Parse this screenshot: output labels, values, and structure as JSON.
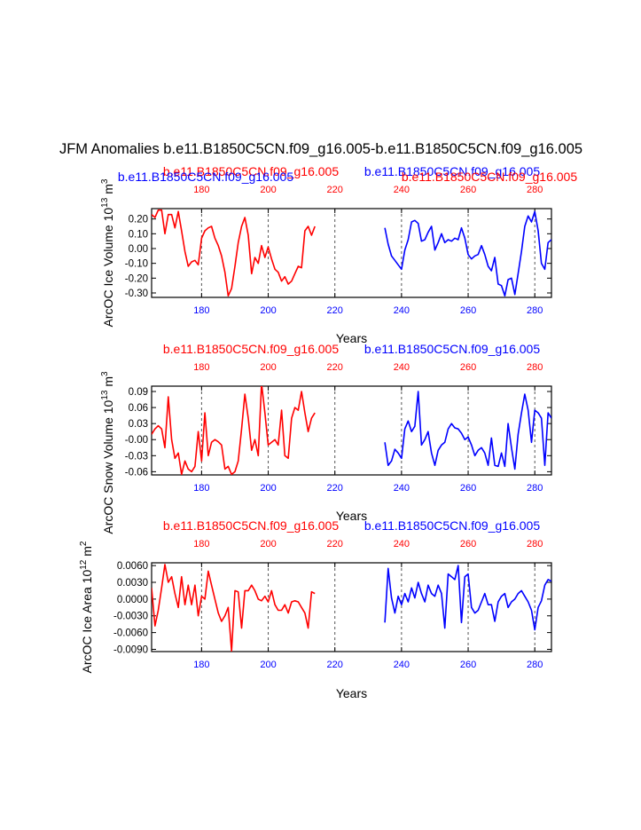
{
  "title": "JFM Anomalies b.e11.B1850C5CN.f09_g16.005-b.e11.B1850C5CN.f09_g16.005",
  "colors": {
    "red": "#ff0000",
    "blue": "#0000ff",
    "axis": "#000000",
    "grid": "#555555"
  },
  "chart_data": [
    {
      "type": "line",
      "ylabel": "ArcOC Ice Volume 10^13 m^3",
      "ylabel_main": "ArcOC Ice Volume 10",
      "ylabel_sup1": "13",
      "ylabel_mid": " m",
      "ylabel_sup2": "3",
      "xlabel": "Years",
      "xlim": [
        165,
        285
      ],
      "ylim": [
        -0.33,
        0.27
      ],
      "yticks": [
        0.2,
        0.1,
        0.0,
        -0.1,
        -0.2,
        -0.3
      ],
      "ytick_labels": [
        "0.20",
        "0.10",
        "0.00",
        "-0.10",
        "-0.20",
        "-0.30"
      ],
      "xticks": [
        180,
        200,
        220,
        240,
        260,
        280
      ],
      "xtick_labels": [
        "180",
        "200",
        "220",
        "240",
        "260",
        "280"
      ],
      "vgrid": [
        180,
        200,
        220,
        240,
        260,
        280
      ],
      "top_label_left": "b.e11.B1850C5CN.f09_g16.005",
      "top_label_right": "b.e11.B1850C5CN.f09_g16.005",
      "top_tick_labels_left": [
        "180",
        "200",
        "220"
      ],
      "top_tick_labels_right": [
        "240",
        "260",
        "280"
      ],
      "series": [
        {
          "name": "b.e11.B1850C5CN.f09_g16.005",
          "color": "red",
          "x": [
            165,
            166,
            167,
            168,
            169,
            170,
            171,
            172,
            173,
            174,
            175,
            176,
            177,
            178,
            179,
            180,
            181,
            182,
            183,
            184,
            185,
            186,
            187,
            188,
            189,
            190,
            191,
            192,
            193,
            194,
            195,
            196,
            197,
            198,
            199,
            200,
            201,
            202,
            203,
            204,
            205,
            206,
            207,
            208,
            209,
            210,
            211,
            212,
            213,
            214
          ],
          "values": [
            0.23,
            0.21,
            0.26,
            0.26,
            0.1,
            0.23,
            0.23,
            0.14,
            0.25,
            0.12,
            -0.02,
            -0.12,
            -0.09,
            -0.08,
            -0.11,
            0.07,
            0.12,
            0.14,
            0.15,
            0.07,
            0.02,
            -0.05,
            -0.16,
            -0.32,
            -0.27,
            -0.12,
            0.04,
            0.15,
            0.21,
            0.09,
            -0.17,
            -0.06,
            -0.1,
            0.02,
            -0.06,
            0.01,
            -0.07,
            -0.14,
            -0.16,
            -0.22,
            -0.19,
            -0.24,
            -0.22,
            -0.17,
            -0.12,
            -0.13,
            0.12,
            0.15,
            0.09,
            0.15
          ]
        },
        {
          "name": "b.e11.B1850C5CN.f09_g16.005",
          "color": "blue",
          "x": [
            235,
            236,
            237,
            238,
            239,
            240,
            241,
            242,
            243,
            244,
            245,
            246,
            247,
            248,
            249,
            250,
            251,
            252,
            253,
            254,
            255,
            256,
            257,
            258,
            259,
            260,
            261,
            262,
            263,
            264,
            265,
            266,
            267,
            268,
            269,
            270,
            271,
            272,
            273,
            274,
            275,
            276,
            277,
            278,
            279,
            280,
            281,
            282,
            283,
            284,
            285
          ],
          "values": [
            0.14,
            0.03,
            -0.05,
            -0.08,
            -0.11,
            -0.14,
            -0.01,
            0.06,
            0.18,
            0.19,
            0.17,
            0.05,
            0.06,
            0.11,
            0.15,
            -0.01,
            0.04,
            0.1,
            0.04,
            0.06,
            0.05,
            0.07,
            0.06,
            0.14,
            0.07,
            -0.04,
            -0.07,
            -0.05,
            -0.04,
            0.02,
            -0.04,
            -0.12,
            -0.15,
            -0.06,
            -0.24,
            -0.25,
            -0.32,
            -0.21,
            -0.2,
            -0.31,
            -0.17,
            -0.02,
            0.15,
            0.22,
            0.18,
            0.25,
            0.12,
            -0.1,
            -0.14,
            0.04,
            0.06
          ]
        }
      ]
    },
    {
      "type": "line",
      "ylabel": "ArcOC Snow Volume 10^13 m^3",
      "ylabel_main": "ArcOC Snow Volume 10",
      "ylabel_sup1": "13",
      "ylabel_mid": " m",
      "ylabel_sup2": "3",
      "xlabel": "Years",
      "xlim": [
        165,
        285
      ],
      "ylim": [
        -0.066,
        0.1
      ],
      "yticks": [
        0.09,
        0.06,
        0.03,
        0.0,
        -0.03,
        -0.06
      ],
      "ytick_labels": [
        "0.09",
        "0.06",
        "0.03",
        "-0.00",
        "-0.03",
        "-0.06"
      ],
      "xticks": [
        180,
        200,
        220,
        240,
        260,
        280
      ],
      "xtick_labels": [
        "180",
        "200",
        "220",
        "240",
        "260",
        "280"
      ],
      "vgrid": [
        180,
        200,
        220,
        240,
        260,
        280
      ],
      "top_label_left": "b.e11.B1850C5CN.f09_g16.005",
      "top_label_right": "b.e11.B1850C5CN.f09_g16.005",
      "top_tick_labels_left": [
        "180",
        "200",
        "220"
      ],
      "top_tick_labels_right": [
        "240",
        "260",
        "280"
      ],
      "series": [
        {
          "name": "b.e11.B1850C5CN.f09_g16.005",
          "color": "red",
          "x": [
            165,
            166,
            167,
            168,
            169,
            170,
            171,
            172,
            173,
            174,
            175,
            176,
            177,
            178,
            179,
            180,
            181,
            182,
            183,
            184,
            185,
            186,
            187,
            188,
            189,
            190,
            191,
            192,
            193,
            194,
            195,
            196,
            197,
            198,
            199,
            200,
            201,
            202,
            203,
            204,
            205,
            206,
            207,
            208,
            209,
            210,
            211,
            212,
            213,
            214
          ],
          "values": [
            0.01,
            0.02,
            0.026,
            0.02,
            -0.015,
            0.08,
            0.0,
            -0.035,
            -0.025,
            -0.065,
            -0.04,
            -0.055,
            -0.06,
            -0.05,
            0.015,
            -0.04,
            0.05,
            -0.03,
            -0.005,
            0.0,
            -0.004,
            -0.01,
            -0.055,
            -0.05,
            -0.065,
            -0.06,
            -0.04,
            0.02,
            0.085,
            0.04,
            -0.02,
            0.0,
            -0.03,
            0.105,
            0.05,
            -0.01,
            -0.005,
            0.0,
            -0.01,
            0.055,
            -0.03,
            -0.035,
            0.04,
            0.06,
            0.055,
            0.09,
            0.05,
            0.015,
            0.04,
            0.05
          ]
        },
        {
          "name": "b.e11.B1850C5CN.f09_g16.005",
          "color": "blue",
          "x": [
            235,
            236,
            237,
            238,
            239,
            240,
            241,
            242,
            243,
            244,
            245,
            246,
            247,
            248,
            249,
            250,
            251,
            252,
            253,
            254,
            255,
            256,
            257,
            258,
            259,
            260,
            261,
            262,
            263,
            264,
            265,
            266,
            267,
            268,
            269,
            270,
            271,
            272,
            273,
            274,
            275,
            276,
            277,
            278,
            279,
            280,
            281,
            282,
            283,
            284,
            285
          ],
          "values": [
            -0.005,
            -0.048,
            -0.04,
            -0.018,
            -0.025,
            -0.035,
            0.02,
            0.035,
            0.015,
            0.025,
            0.09,
            -0.01,
            0.0,
            0.015,
            -0.025,
            -0.048,
            -0.02,
            -0.01,
            -0.005,
            0.02,
            0.03,
            0.022,
            0.02,
            0.012,
            0.0,
            0.005,
            -0.01,
            -0.03,
            -0.02,
            -0.015,
            -0.025,
            -0.048,
            0.003,
            -0.048,
            -0.05,
            -0.025,
            -0.05,
            0.03,
            -0.015,
            -0.055,
            0.01,
            0.05,
            0.085,
            0.055,
            -0.005,
            0.055,
            0.05,
            0.04,
            -0.048,
            0.05,
            0.04
          ]
        }
      ]
    },
    {
      "type": "line",
      "ylabel": "ArcOC Ice Area 10^12 m^2",
      "ylabel_main": "ArcOC Ice Area 10",
      "ylabel_sup1": "12",
      "ylabel_mid": " m",
      "ylabel_sup2": "2",
      "xlabel": "Years",
      "xlim": [
        165,
        285
      ],
      "ylim": [
        -0.0094,
        0.0065
      ],
      "yticks": [
        0.006,
        0.003,
        0.0,
        -0.003,
        -0.006,
        -0.009
      ],
      "ytick_labels": [
        "0.0060",
        "0.0030",
        "0.0000",
        "-0.0030",
        "-0.0060",
        "-0.0090"
      ],
      "xticks": [
        180,
        200,
        220,
        240,
        260,
        280
      ],
      "xtick_labels": [
        "180",
        "200",
        "220",
        "240",
        "260",
        "280"
      ],
      "vgrid": [
        180,
        200,
        220,
        240,
        260,
        280
      ],
      "top_label_left": "b.e11.B1850C5CN.f09_g16.005",
      "top_label_right": "b.e11.B1850C5CN.f09_g16.005",
      "top_tick_labels_left": [
        "180",
        "200",
        "220"
      ],
      "top_tick_labels_right": [
        "240",
        "260",
        "280"
      ],
      "series": [
        {
          "name": "b.e11.B1850C5CN.f09_g16.005",
          "color": "red",
          "x": [
            165,
            166,
            167,
            168,
            169,
            170,
            171,
            172,
            173,
            174,
            175,
            176,
            177,
            178,
            179,
            180,
            181,
            182,
            183,
            184,
            185,
            186,
            187,
            188,
            189,
            190,
            191,
            192,
            193,
            194,
            195,
            196,
            197,
            198,
            199,
            200,
            201,
            202,
            203,
            204,
            205,
            206,
            207,
            208,
            209,
            210,
            211,
            212,
            213,
            214
          ],
          "values": [
            0.002,
            -0.0048,
            -0.002,
            0.002,
            0.0062,
            0.003,
            0.004,
            0.001,
            -0.0015,
            0.004,
            -0.001,
            0.0025,
            -0.001,
            0.0025,
            -0.003,
            0.0005,
            0.0,
            0.005,
            0.0025,
            0.0,
            -0.0025,
            -0.004,
            -0.003,
            -0.0015,
            -0.0093,
            0.0015,
            0.0013,
            -0.0052,
            0.0015,
            0.0015,
            0.0025,
            0.0015,
            0.0,
            -0.0003,
            0.0005,
            -0.0005,
            0.0015,
            -0.001,
            -0.002,
            -0.002,
            -0.001,
            -0.0025,
            -0.0005,
            -0.0003,
            -0.0005,
            -0.0015,
            -0.0025,
            -0.0052,
            0.0013,
            0.001
          ]
        },
        {
          "name": "b.e11.B1850C5CN.f09_g16.005",
          "color": "blue",
          "x": [
            235,
            236,
            237,
            238,
            239,
            240,
            241,
            242,
            243,
            244,
            245,
            246,
            247,
            248,
            249,
            250,
            251,
            252,
            253,
            254,
            255,
            256,
            257,
            258,
            259,
            260,
            261,
            262,
            263,
            264,
            265,
            266,
            267,
            268,
            269,
            270,
            271,
            272,
            273,
            274,
            275,
            276,
            277,
            278,
            279,
            280,
            281,
            282,
            283,
            284,
            285
          ],
          "values": [
            -0.0042,
            0.0055,
            0.0002,
            -0.0025,
            0.0005,
            -0.001,
            0.001,
            -0.0005,
            0.002,
            0.0002,
            0.003,
            0.001,
            -0.0005,
            0.0025,
            0.001,
            0.0005,
            0.0025,
            0.001,
            -0.0052,
            0.0045,
            0.004,
            0.0035,
            0.006,
            -0.0042,
            0.004,
            0.0045,
            -0.0015,
            -0.0025,
            -0.002,
            -0.0005,
            0.001,
            -0.001,
            -0.001,
            -0.004,
            -0.0005,
            0.0005,
            0.001,
            -0.0015,
            -0.0005,
            0.0,
            0.001,
            0.0015,
            0.0005,
            -0.0005,
            -0.002,
            -0.0055,
            -0.0015,
            -0.0003,
            0.0025,
            0.0035,
            0.0032
          ]
        }
      ]
    }
  ]
}
